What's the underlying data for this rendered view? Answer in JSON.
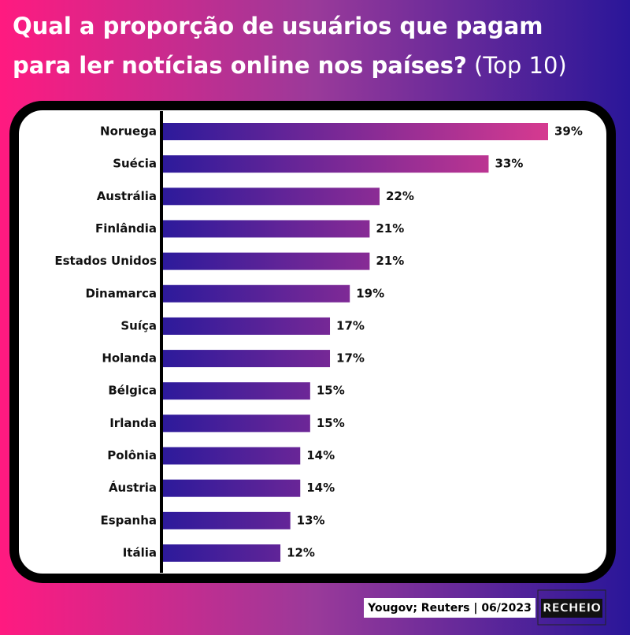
{
  "chart_data": {
    "type": "bar",
    "orientation": "horizontal",
    "title_lines": [
      "Qual a proporção de usuários que pagam",
      "para ler notícias online nos países?"
    ],
    "title_note": "(Top 10)",
    "categories": [
      "Noruega",
      "Suécia",
      "Austrália",
      "Finlândia",
      "Estados Unidos",
      "Dinamarca",
      "Suíça",
      "Holanda",
      "Bélgica",
      "Irlanda",
      "Polônia",
      "Áustria",
      "Espanha",
      "Itália"
    ],
    "values": [
      39,
      33,
      22,
      21,
      21,
      19,
      17,
      17,
      15,
      15,
      14,
      14,
      13,
      12
    ],
    "value_labels": [
      "39%",
      "33%",
      "22%",
      "21%",
      "21%",
      "19%",
      "17%",
      "17%",
      "15%",
      "15%",
      "14%",
      "14%",
      "13%",
      "12%"
    ],
    "colors": [
      "#2c1a9b",
      "#d63a90"
    ],
    "source": "Yougov; Reuters | 06/2023",
    "brand": "RECHEIO"
  }
}
